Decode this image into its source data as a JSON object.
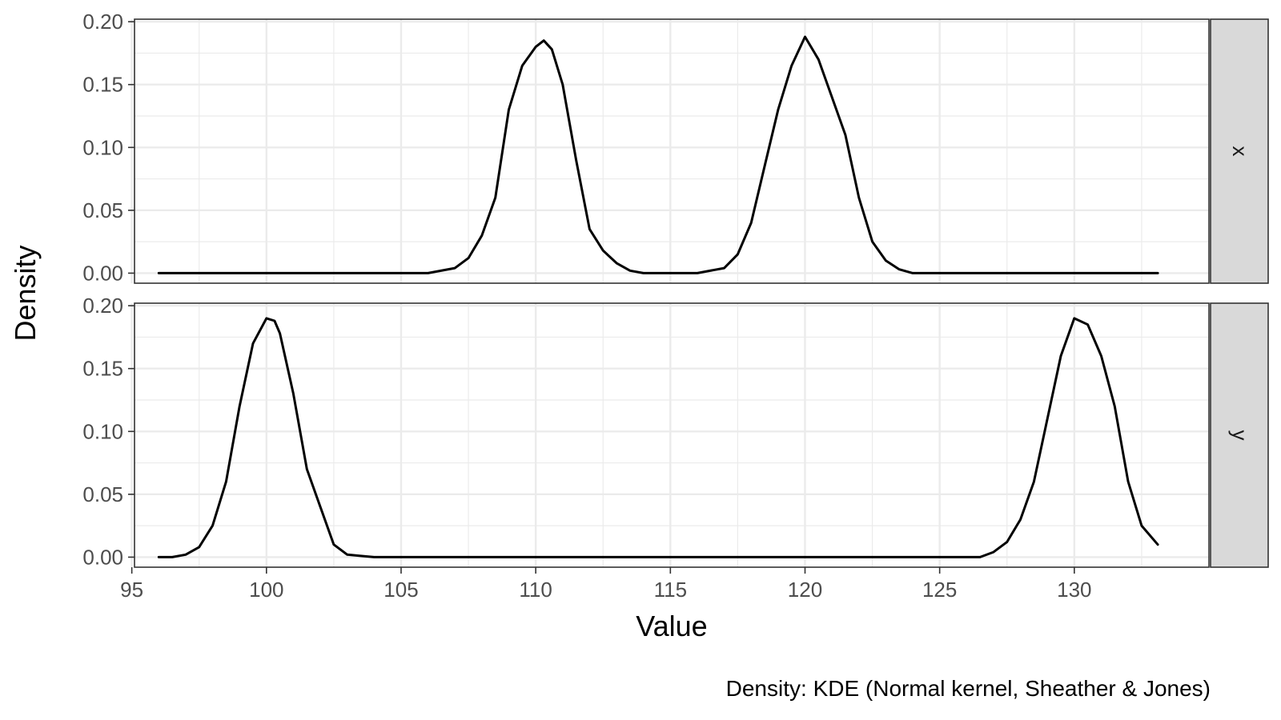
{
  "chart_data": {
    "type": "line",
    "facet_layout": "rows",
    "xlabel": "Value",
    "ylabel": "Density",
    "caption": "Density: KDE (Normal kernel, Sheather & Jones)",
    "xlim": [
      95.1,
      135.0
    ],
    "ylim": [
      -0.008,
      0.202
    ],
    "xticks": [
      95,
      100,
      105,
      110,
      115,
      120,
      125,
      130
    ],
    "yticks": [
      0.0,
      0.05,
      0.1,
      0.15,
      0.2
    ],
    "ytick_labels": [
      "0.00",
      "0.05",
      "0.10",
      "0.15",
      "0.20"
    ],
    "grid": true,
    "colors": {
      "line": "#000000",
      "panel_bg": "#ffffff",
      "grid": "#ebebeb",
      "strip_bg": "#d9d9d9",
      "border": "#333333"
    },
    "facets": [
      {
        "label": "x",
        "x": [
          96.0,
          104.0,
          106.0,
          107.0,
          107.5,
          108.0,
          108.5,
          109.0,
          109.5,
          110.0,
          110.3,
          110.6,
          111.0,
          111.5,
          112.0,
          112.5,
          113.0,
          113.5,
          114.0,
          116.0,
          117.0,
          117.5,
          118.0,
          118.5,
          119.0,
          119.5,
          120.0,
          120.5,
          121.0,
          121.5,
          122.0,
          122.5,
          123.0,
          123.5,
          124.0,
          125.0,
          133.1
        ],
        "y": [
          0.0,
          0.0,
          0.0,
          0.004,
          0.012,
          0.03,
          0.06,
          0.13,
          0.165,
          0.18,
          0.185,
          0.178,
          0.15,
          0.09,
          0.035,
          0.018,
          0.008,
          0.002,
          0.0,
          0.0,
          0.004,
          0.015,
          0.04,
          0.085,
          0.13,
          0.165,
          0.188,
          0.17,
          0.14,
          0.11,
          0.06,
          0.025,
          0.01,
          0.003,
          0.0,
          0.0,
          0.0
        ]
      },
      {
        "label": "y",
        "x": [
          96.0,
          96.5,
          97.0,
          97.5,
          98.0,
          98.5,
          99.0,
          99.5,
          100.0,
          100.3,
          100.5,
          101.0,
          101.5,
          102.0,
          102.5,
          103.0,
          103.5,
          104.0,
          105.0,
          125.0,
          126.5,
          127.0,
          127.5,
          128.0,
          128.5,
          129.0,
          129.5,
          130.0,
          130.5,
          131.0,
          131.5,
          132.0,
          132.5,
          133.1
        ],
        "y": [
          0.0,
          0.0,
          0.002,
          0.008,
          0.025,
          0.06,
          0.12,
          0.17,
          0.19,
          0.188,
          0.178,
          0.13,
          0.07,
          0.04,
          0.01,
          0.002,
          0.001,
          0.0,
          0.0,
          0.0,
          0.0,
          0.004,
          0.012,
          0.03,
          0.06,
          0.11,
          0.16,
          0.19,
          0.185,
          0.16,
          0.12,
          0.06,
          0.025,
          0.01
        ]
      }
    ]
  }
}
